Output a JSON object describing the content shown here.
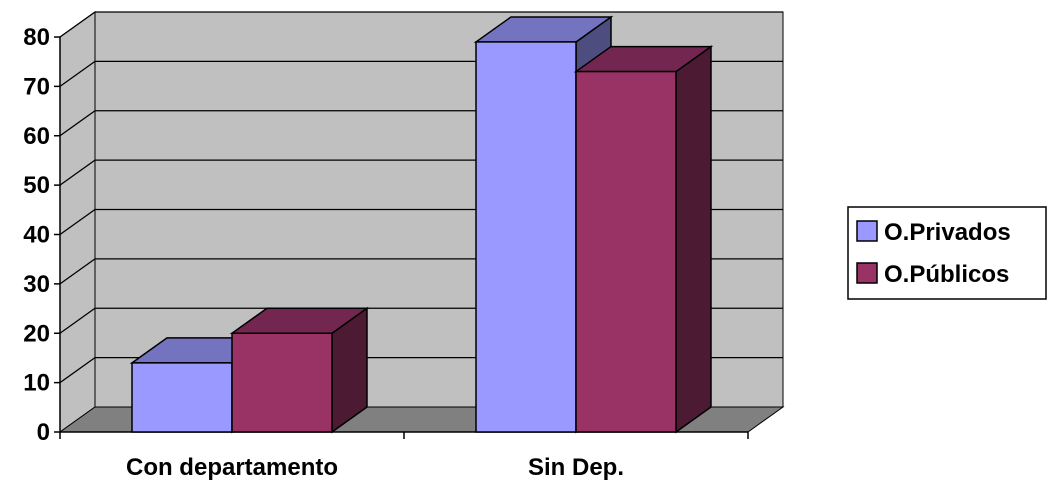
{
  "chart_data": {
    "type": "bar",
    "style": "3d-clustered-column",
    "categories": [
      "Con departamento",
      "Sin Dep."
    ],
    "series": [
      {
        "name": "O.Privados",
        "values": [
          14,
          79
        ]
      },
      {
        "name": "O.Públicos",
        "values": [
          20,
          73
        ]
      }
    ],
    "title": "",
    "xlabel": "",
    "ylabel": "",
    "ylim": [
      0,
      80
    ],
    "yticks": [
      0,
      10,
      20,
      30,
      40,
      50,
      60,
      70,
      80
    ],
    "grid": true,
    "legend_position": "right",
    "colors": {
      "series": [
        "#9999ff",
        "#993366"
      ],
      "series_top": [
        "#7373c0",
        "#732650"
      ],
      "series_side": [
        "#4d4d80",
        "#4d1a33"
      ],
      "wall": "#c0c0c0",
      "floor": "#808080",
      "gridline": "#000000"
    }
  }
}
